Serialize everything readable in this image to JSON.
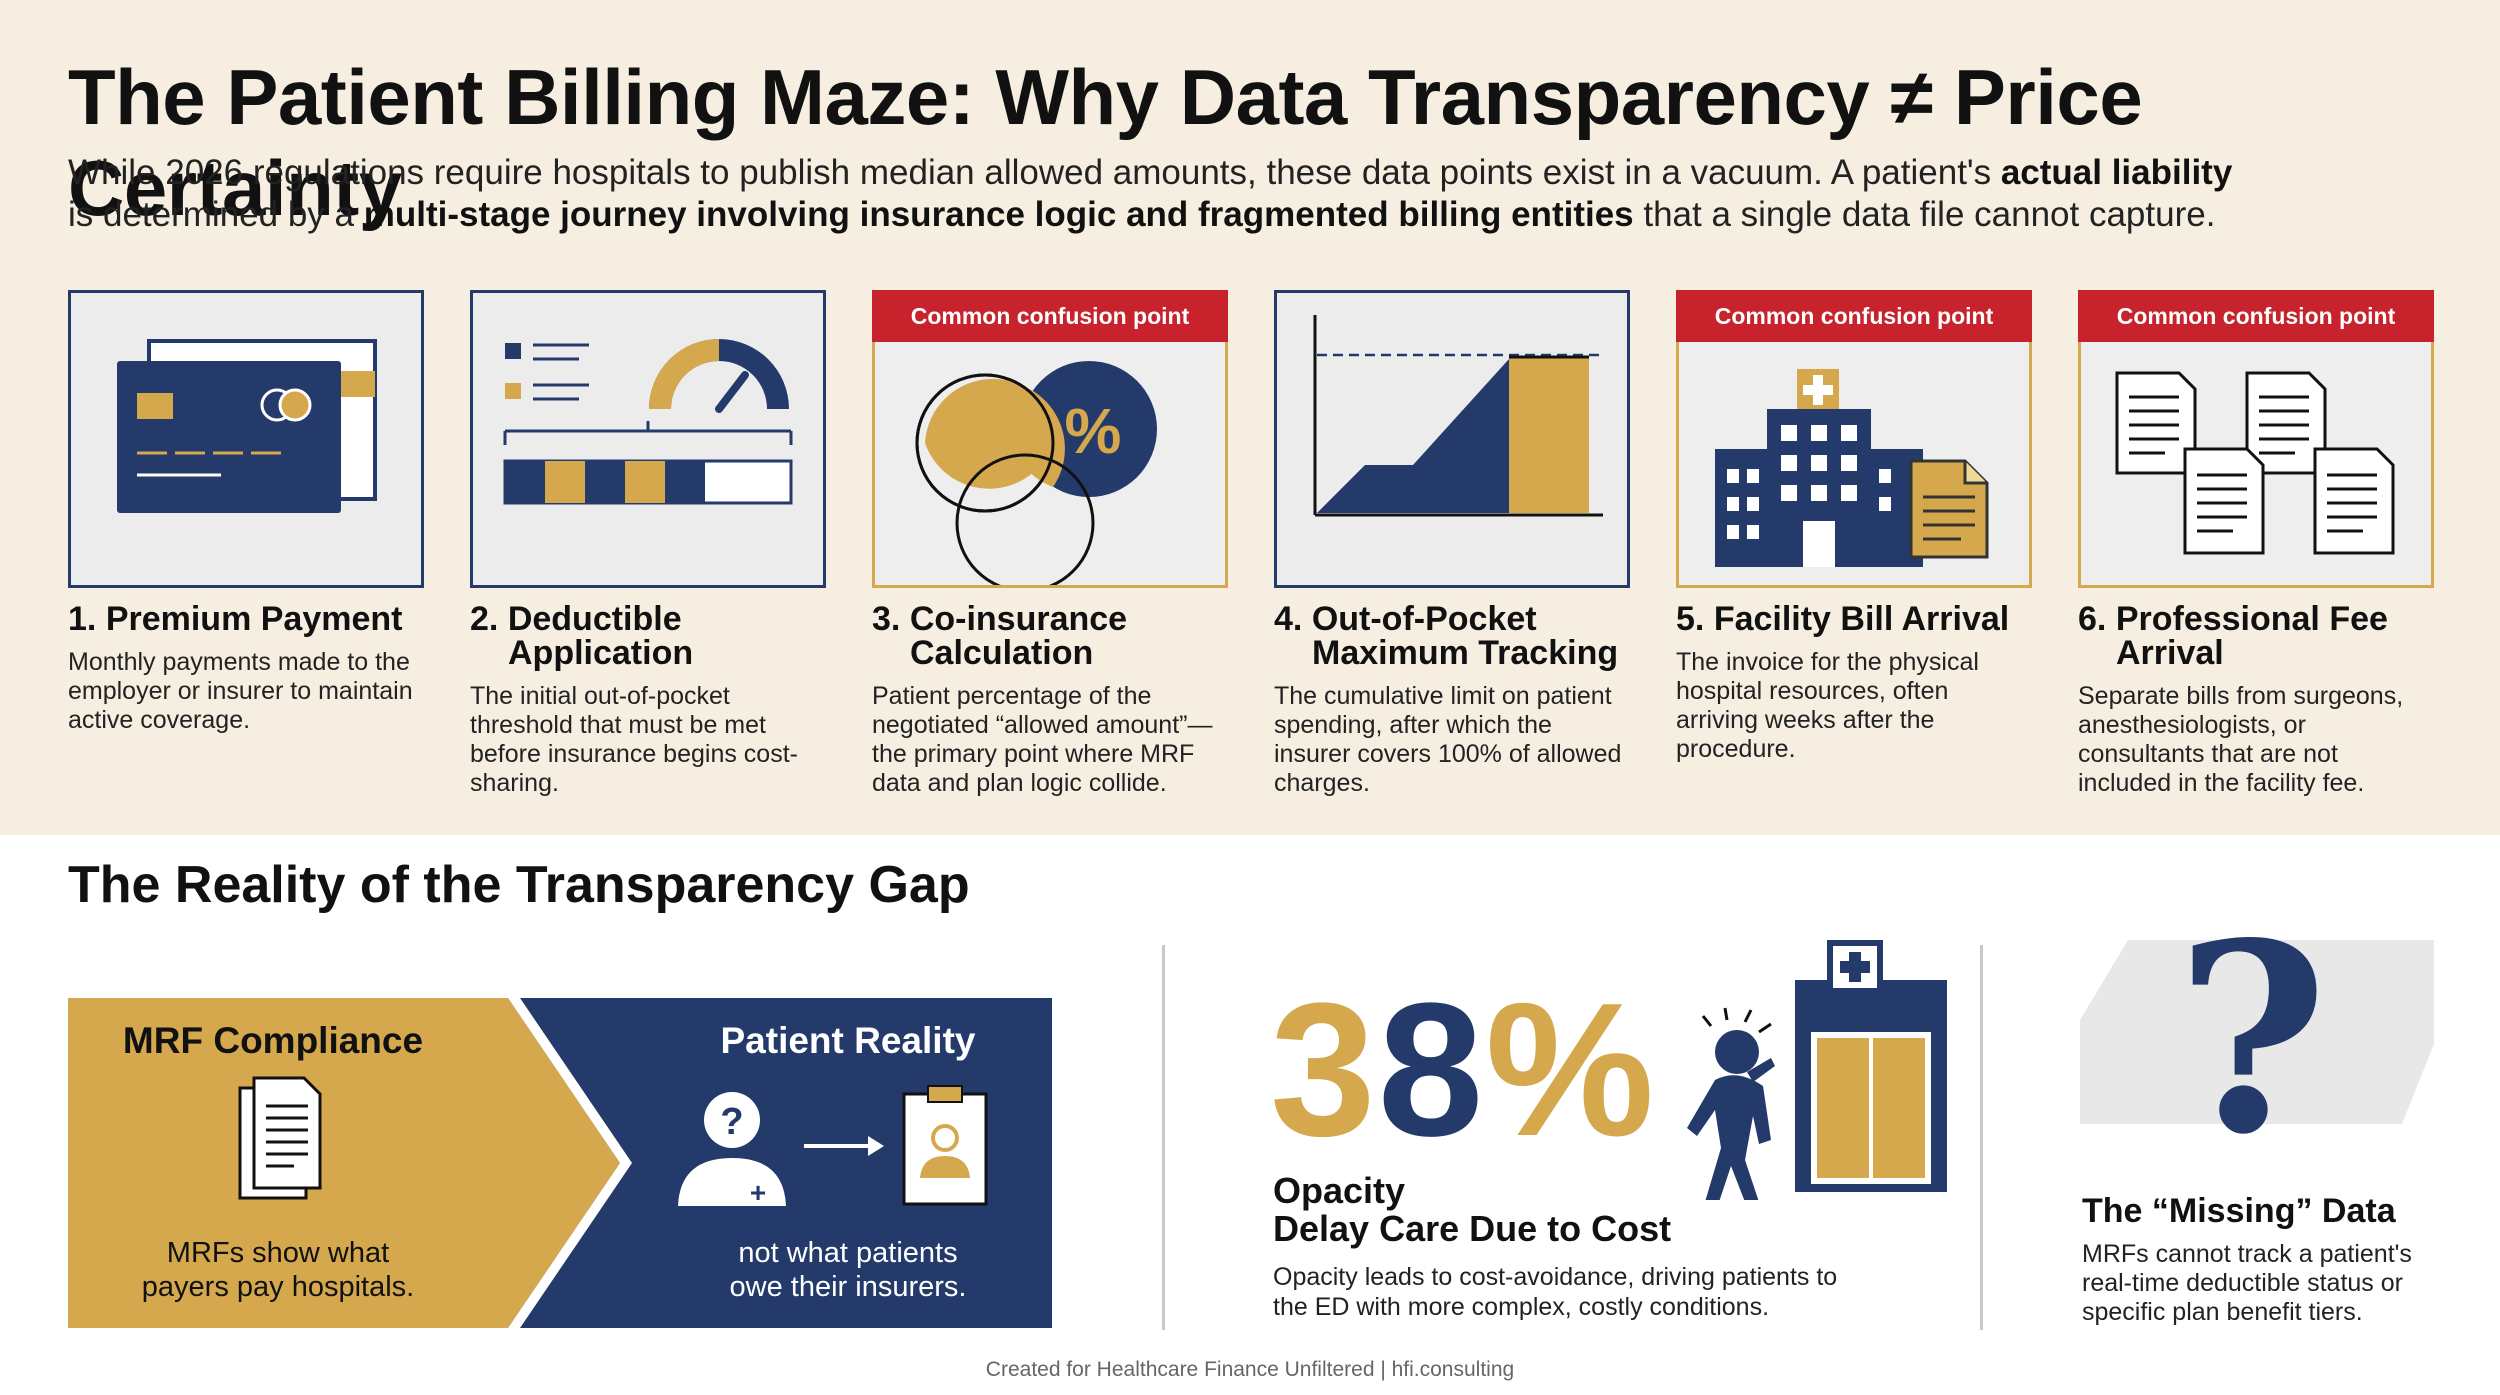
{
  "title": "The Patient Billing Maze: Why Data Transparency ≠ Price Certainty",
  "intro": {
    "part1": "While 2026 regulations require hospitals to publish median allowed amounts, these data points exist in a vacuum. A patient's ",
    "bold1": "actual liability",
    "part2": " is determined by a ",
    "bold2": "multi-stage journey involving insurance logic and fragmented billing entities",
    "part3": " that a single data file cannot capture."
  },
  "confusion_tag": "Common confusion point",
  "steps": [
    {
      "num": "1.",
      "title1": "Premium Payment",
      "title2": "",
      "desc": "Monthly payments made to the employer or insurer to maintain active coverage.",
      "icon": "credit-card-icon",
      "confusion": false
    },
    {
      "num": "2.",
      "title1": "Deductible",
      "title2": "Application",
      "desc": "The initial out-of-pocket threshold that must be met before insurance begins cost-sharing.",
      "icon": "gauge-icon",
      "confusion": false
    },
    {
      "num": "3.",
      "title1": "Co-insurance",
      "title2": "Calculation",
      "desc": "Patient percentage of the negotiated “allowed amount”—the primary point where MRF data and plan logic collide.",
      "icon": "venn-percent-icon",
      "confusion": true
    },
    {
      "num": "4.",
      "title1": "Out-of-Pocket",
      "title2": "Maximum Tracking",
      "desc": "The cumulative limit on patient spending, after which the insurer covers 100% of allowed charges.",
      "icon": "step-chart-icon",
      "confusion": false
    },
    {
      "num": "5.",
      "title1": "Facility Bill Arrival",
      "title2": "",
      "desc": "The invoice for the physical hospital resources, often arriving weeks after the procedure.",
      "icon": "hospital-bill-icon",
      "confusion": true
    },
    {
      "num": "6.",
      "title1": "Professional Fee",
      "title2": "Arrival",
      "desc": "Separate bills from surgeons, anesthesiologists, or consultants that are not included in the facility fee.",
      "icon": "documents-icon",
      "confusion": true
    }
  ],
  "gap_title": "The Reality of the Transparency Gap",
  "compare": {
    "left_title": "MRF Compliance",
    "left_text1": "MRFs show what",
    "left_text2": "payers pay hospitals.",
    "right_title": "Patient Reality",
    "right_text1": "not what patients",
    "right_text2": "owe their insurers."
  },
  "stat": {
    "digit1": "3",
    "digit2": "8",
    "percent": "%",
    "label1": "Opacity",
    "label2": "Delay Care Due to Cost",
    "desc": "Opacity leads to cost-avoidance, driving patients to the ED with more complex, costly conditions."
  },
  "missing": {
    "title": "The “Missing” Data",
    "desc": "MRFs cannot track a patient's real-time deductible status or specific plan benefit tiers."
  },
  "footer": "Created for Healthcare Finance Unfiltered | hfi.consulting",
  "colors": {
    "navy": "#233a6b",
    "gold": "#d6a84e",
    "red": "#c8232c",
    "cream": "#f6efe1"
  }
}
